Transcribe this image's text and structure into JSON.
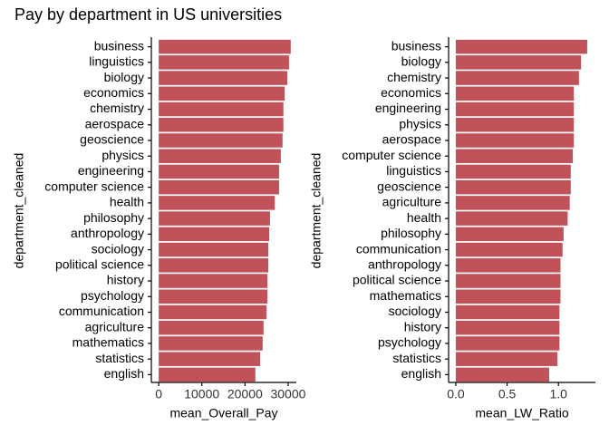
{
  "title": "Pay by department in US universities",
  "chart_data": [
    {
      "type": "barh",
      "x_label": "mean_Overall_Pay",
      "y_label": "department_cleaned",
      "color": "#c1525a",
      "categories": [
        "business",
        "linguistics",
        "biology",
        "economics",
        "chemistry",
        "aerospace",
        "geoscience",
        "physics",
        "engineering",
        "computer science",
        "health",
        "philosophy",
        "anthropology",
        "sociology",
        "political science",
        "history",
        "psychology",
        "communication",
        "agriculture",
        "mathematics",
        "statistics",
        "english"
      ],
      "values": [
        30600,
        30200,
        29800,
        29200,
        28900,
        28900,
        28700,
        28300,
        27900,
        27900,
        26900,
        25800,
        25600,
        25400,
        25400,
        25200,
        25200,
        25000,
        24300,
        24100,
        23500,
        22400
      ],
      "xlim": [
        -1700,
        31900
      ],
      "xticks": [
        0,
        10000,
        20000,
        30000
      ]
    },
    {
      "type": "barh",
      "x_label": "mean_LW_Ratio",
      "y_label": "department_cleaned",
      "color": "#c1525a",
      "categories": [
        "business",
        "biology",
        "chemistry",
        "economics",
        "engineering",
        "physics",
        "aerospace",
        "computer science",
        "linguistics",
        "geoscience",
        "agriculture",
        "health",
        "philosophy",
        "communication",
        "anthropology",
        "political science",
        "mathematics",
        "sociology",
        "history",
        "psychology",
        "statistics",
        "english"
      ],
      "values": [
        1.28,
        1.22,
        1.2,
        1.15,
        1.15,
        1.15,
        1.15,
        1.14,
        1.12,
        1.12,
        1.11,
        1.09,
        1.05,
        1.04,
        1.02,
        1.02,
        1.02,
        1.01,
        1.01,
        1.01,
        0.99,
        0.91
      ],
      "xlim": [
        -0.07,
        1.36
      ],
      "xticks": [
        {
          "value": 0,
          "label": "0.0"
        },
        0.5,
        {
          "value": 1,
          "label": "1.0"
        }
      ]
    }
  ]
}
